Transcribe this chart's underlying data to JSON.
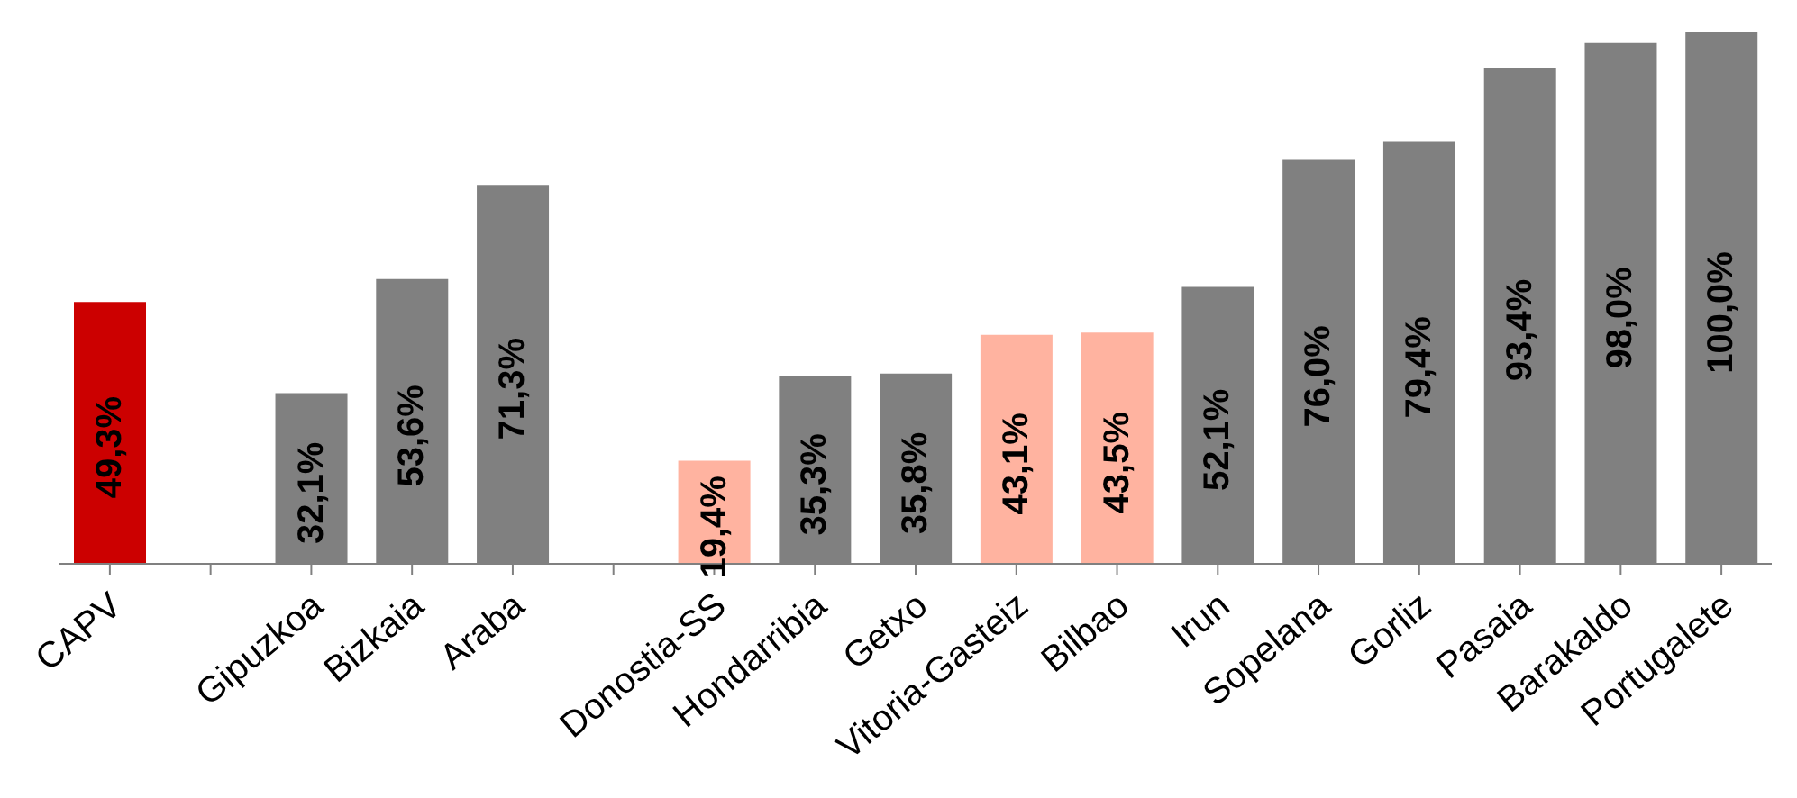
{
  "chart_data": {
    "type": "bar",
    "categories": [
      "CAPV",
      null,
      "Gipuzkoa",
      "Bizkaia",
      "Araba",
      null,
      "Donostia-SS",
      "Hondarribia",
      "Getxo",
      "Vitoria-Gasteiz",
      "Bilbao",
      "Irun",
      "Sopelana",
      "Gorliz",
      "Pasaia",
      "Barakaldo",
      "Portugalete"
    ],
    "values": [
      49.3,
      null,
      32.1,
      53.6,
      71.3,
      null,
      19.4,
      35.3,
      35.8,
      43.1,
      43.5,
      52.1,
      76.0,
      79.4,
      93.4,
      98.0,
      100.0
    ],
    "colors": [
      "#cc0000",
      null,
      "#808080",
      "#808080",
      "#808080",
      null,
      "#ffb3a0",
      "#808080",
      "#808080",
      "#ffb3a0",
      "#ffb3a0",
      "#808080",
      "#808080",
      "#808080",
      "#808080",
      "#808080",
      "#808080"
    ],
    "value_labels": [
      "49,3%",
      null,
      "32,1%",
      "53,6%",
      "71,3%",
      null,
      "19,4%",
      "35,3%",
      "35,8%",
      "43,1%",
      "43,5%",
      "52,1%",
      "76,0%",
      "79,4%",
      "93,4%",
      "98,0%",
      "100,0%"
    ],
    "grid": false,
    "legend": false
  }
}
